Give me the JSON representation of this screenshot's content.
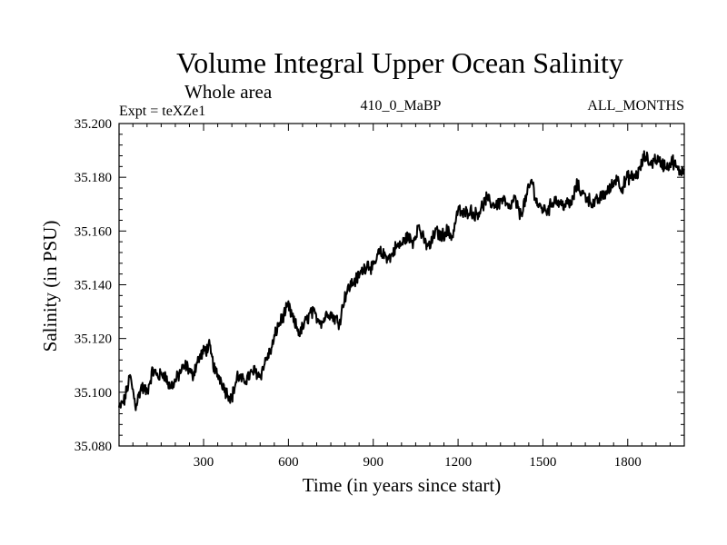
{
  "chart_data": {
    "type": "line",
    "title": "Volume Integral Upper Ocean Salinity",
    "subtitle": "Whole area",
    "experiment_label": "Expt = teXZe1",
    "run_label": "410_0_MaBP",
    "months_label": "ALL_MONTHS",
    "xlabel": "Time (in years since start)",
    "ylabel": "Salinity (in PSU)",
    "xlim": [
      1,
      2000
    ],
    "ylim": [
      35.08,
      35.2
    ],
    "x_ticks": [
      300,
      600,
      900,
      1200,
      1500,
      1800
    ],
    "x_tick_labels": [
      "300",
      "600",
      "900",
      "1200",
      "1500",
      "1800"
    ],
    "y_ticks": [
      35.08,
      35.1,
      35.12,
      35.14,
      35.16,
      35.18,
      35.2
    ],
    "y_tick_labels": [
      "35.080",
      "35.100",
      "35.120",
      "35.140",
      "35.160",
      "35.180",
      "35.200"
    ],
    "series": [
      {
        "name": "Salinity",
        "x": [
          1,
          20,
          40,
          60,
          80,
          100,
          120,
          140,
          160,
          180,
          200,
          220,
          240,
          260,
          280,
          300,
          320,
          340,
          360,
          380,
          400,
          420,
          440,
          460,
          480,
          500,
          520,
          540,
          560,
          580,
          600,
          620,
          640,
          660,
          680,
          700,
          720,
          740,
          760,
          780,
          800,
          820,
          840,
          860,
          880,
          900,
          920,
          940,
          960,
          980,
          1000,
          1020,
          1040,
          1060,
          1080,
          1100,
          1120,
          1140,
          1160,
          1180,
          1200,
          1220,
          1240,
          1260,
          1280,
          1300,
          1320,
          1340,
          1360,
          1380,
          1400,
          1420,
          1440,
          1460,
          1480,
          1500,
          1520,
          1540,
          1560,
          1580,
          1600,
          1620,
          1640,
          1660,
          1680,
          1700,
          1720,
          1740,
          1760,
          1780,
          1800,
          1820,
          1840,
          1860,
          1880,
          1900,
          1920,
          1940,
          1960,
          1980,
          2000
        ],
        "values": [
          35.094,
          35.097,
          35.106,
          35.095,
          35.102,
          35.1,
          35.108,
          35.106,
          35.107,
          35.102,
          35.104,
          35.108,
          35.11,
          35.106,
          35.112,
          35.115,
          35.117,
          35.108,
          35.105,
          35.1,
          35.098,
          35.106,
          35.104,
          35.106,
          35.108,
          35.106,
          35.112,
          35.116,
          35.124,
          35.128,
          35.132,
          35.126,
          35.122,
          35.126,
          35.13,
          35.128,
          35.126,
          35.13,
          35.128,
          35.126,
          35.136,
          35.14,
          35.142,
          35.145,
          35.148,
          35.146,
          35.152,
          35.151,
          35.15,
          35.154,
          35.155,
          35.158,
          35.156,
          35.162,
          35.156,
          35.154,
          35.16,
          35.158,
          35.16,
          35.158,
          35.168,
          35.166,
          35.168,
          35.166,
          35.168,
          35.172,
          35.17,
          35.17,
          35.172,
          35.168,
          35.172,
          35.166,
          35.172,
          35.179,
          35.17,
          35.168,
          35.168,
          35.172,
          35.17,
          35.17,
          35.17,
          35.177,
          35.174,
          35.172,
          35.17,
          35.172,
          35.174,
          35.176,
          35.18,
          35.176,
          35.18,
          35.18,
          35.182,
          35.188,
          35.185,
          35.187,
          35.185,
          35.184,
          35.186,
          35.182,
          35.183
        ]
      }
    ]
  }
}
